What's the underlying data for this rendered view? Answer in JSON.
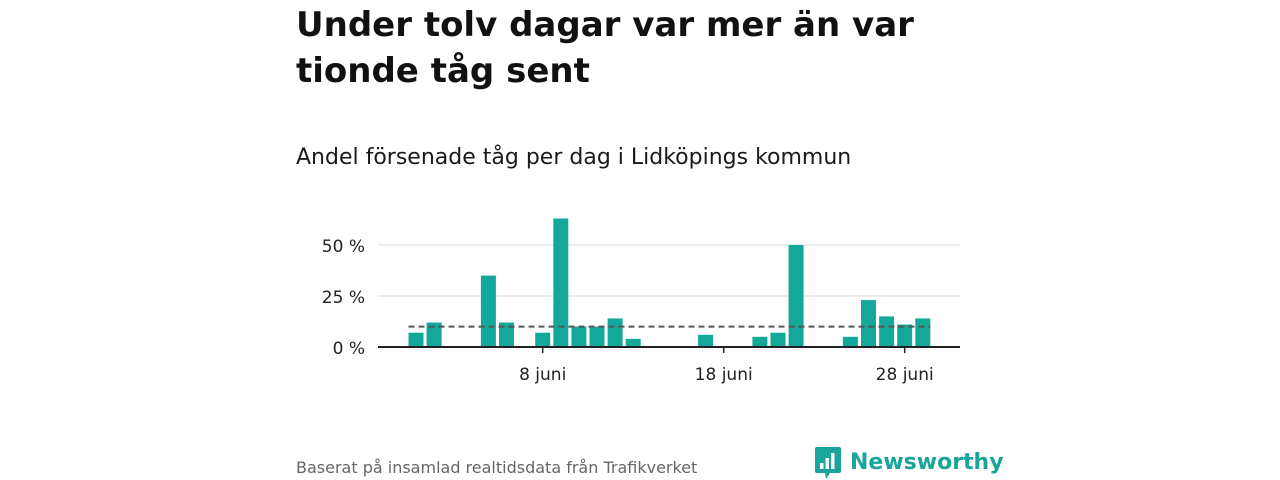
{
  "colors": {
    "bar": "#13a89a",
    "avg_line": "#555555",
    "grid": "#d9d9d9",
    "axis": "#222222",
    "brand": "#1aa59a"
  },
  "brand": {
    "name": "Newsworthy",
    "icon": "bar-chart-logo-icon"
  },
  "footer": {
    "source": "Baserat på insamlad realtidsdata från Trafikverket"
  },
  "chart_data": {
    "type": "bar",
    "title": "Under tolv dagar var mer än var tionde tåg sent",
    "subtitle": "Andel försenade tåg per dag i Lidköpings kommun",
    "x_start_day": 1,
    "x_end_day": 30,
    "x": [
      1,
      2,
      3,
      4,
      5,
      6,
      7,
      8,
      9,
      10,
      11,
      12,
      13,
      14,
      15,
      16,
      17,
      18,
      19,
      20,
      21,
      22,
      23,
      24,
      25,
      26,
      27,
      28,
      29,
      30
    ],
    "values": [
      7,
      12,
      0,
      0,
      35,
      12,
      0,
      7,
      63,
      10,
      10,
      14,
      4,
      0,
      0,
      0,
      6,
      0,
      0,
      5,
      7,
      50,
      0,
      0,
      5,
      23,
      15,
      11,
      14,
      0
    ],
    "average": 10,
    "ylim": [
      0,
      65
    ],
    "y_ticks": [
      0,
      25,
      50
    ],
    "y_tick_labels": [
      "0 %",
      "25 %",
      "50 %"
    ],
    "x_ticks": [
      8,
      18,
      28
    ],
    "x_tick_labels": [
      "8 juni",
      "18 juni",
      "28 juni"
    ],
    "grid": true
  }
}
